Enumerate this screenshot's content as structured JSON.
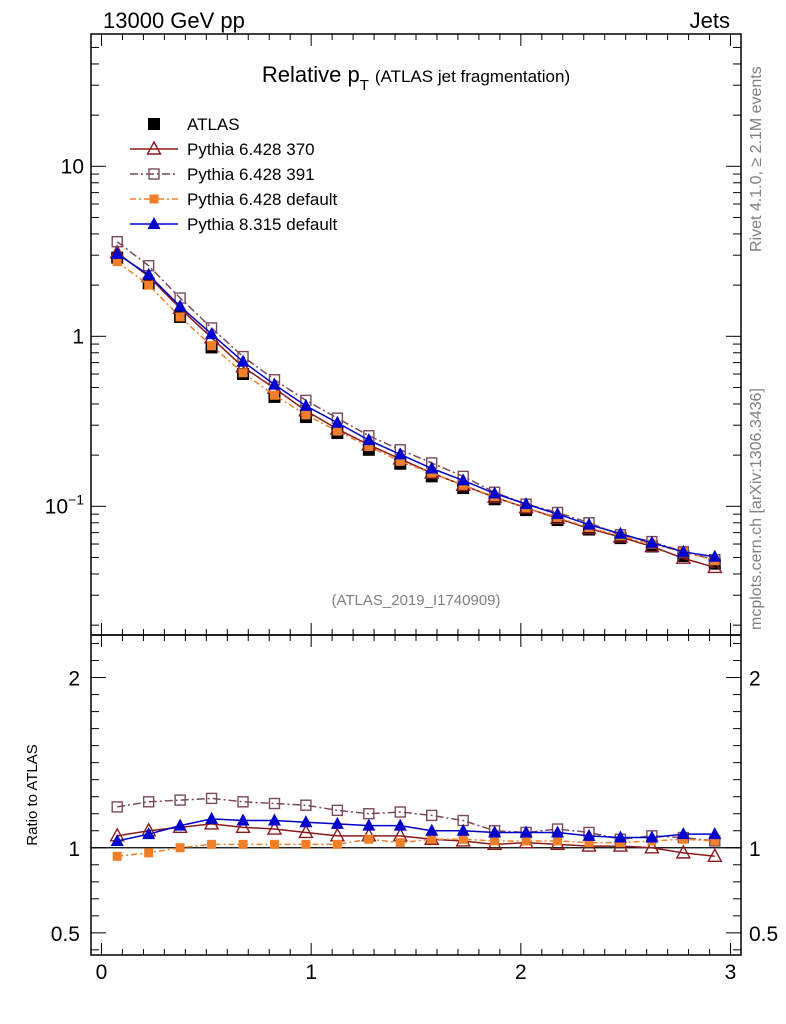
{
  "header": {
    "left": "13000 GeV pp",
    "right": "Jets"
  },
  "side": {
    "rivet": "Rivet 4.1.0, ≥ 2.1M events",
    "mcplots": "mcplots.cern.ch [arXiv:1306.3436]"
  },
  "chart_data": {
    "type": "line",
    "title": "Relative p",
    "title_sub": "T",
    "title_note": "(ATLAS jet fragmentation)",
    "analysis_tag": "(ATLAS_2019_I1740909)",
    "x": [
      0.075,
      0.225,
      0.375,
      0.525,
      0.675,
      0.825,
      0.975,
      1.125,
      1.275,
      1.425,
      1.575,
      1.725,
      1.875,
      2.025,
      2.175,
      2.325,
      2.475,
      2.625,
      2.775,
      2.925
    ],
    "xlim": [
      -0.05,
      3.05
    ],
    "ylim_main": [
      0.0175,
      60
    ],
    "ylim_ratio": [
      0.37,
      2.25
    ],
    "ylabel_ratio": "Ratio to ATLAS",
    "xticks": [
      {
        "value": 0,
        "label": "0"
      },
      {
        "value": 1,
        "label": "1"
      },
      {
        "value": 2,
        "label": "2"
      },
      {
        "value": 3,
        "label": "3"
      }
    ],
    "yticks_main": [
      {
        "value": 0.1,
        "label": "10",
        "sup": "−1"
      },
      {
        "value": 1,
        "label": "1",
        "sup": ""
      },
      {
        "value": 10,
        "label": "10",
        "sup": ""
      }
    ],
    "yticks_ratio": [
      {
        "value": 0.5,
        "label": "0.5"
      },
      {
        "value": 1,
        "label": "1"
      },
      {
        "value": 2,
        "label": "2"
      }
    ],
    "series": [
      {
        "name": "ATLAS",
        "color": "#000000",
        "marker": "filled-square",
        "dash": "",
        "values": [
          2.9,
          2.05,
          1.3,
          0.86,
          0.6,
          0.44,
          0.335,
          0.27,
          0.215,
          0.178,
          0.15,
          0.128,
          0.11,
          0.095,
          0.083,
          0.073,
          0.065,
          0.058,
          0.051,
          0.046
        ],
        "ratio": [
          1,
          1,
          1,
          1,
          1,
          1,
          1,
          1,
          1,
          1,
          1,
          1,
          1,
          1,
          1,
          1,
          1,
          1,
          1,
          1
        ]
      },
      {
        "name": "Pythia 6.428 370",
        "color": "#8b1a1a",
        "marker": "open-triangle",
        "dash": "",
        "values": [
          3.1,
          2.25,
          1.46,
          0.98,
          0.66,
          0.495,
          0.365,
          0.285,
          0.23,
          0.19,
          0.157,
          0.133,
          0.113,
          0.098,
          0.085,
          0.074,
          0.066,
          0.058,
          0.0495,
          0.0437
        ],
        "ratio": [
          1.07,
          1.1,
          1.12,
          1.14,
          1.12,
          1.11,
          1.09,
          1.07,
          1.07,
          1.07,
          1.05,
          1.04,
          1.02,
          1.03,
          1.02,
          1.01,
          1.01,
          1.0,
          0.97,
          0.95
        ]
      },
      {
        "name": "Pythia 6.428 391",
        "color": "#7a4a5e",
        "marker": "open-square",
        "dash": "8,3,2,3",
        "values": [
          3.6,
          2.6,
          1.68,
          1.12,
          0.76,
          0.555,
          0.42,
          0.33,
          0.26,
          0.215,
          0.18,
          0.15,
          0.121,
          0.103,
          0.092,
          0.08,
          0.068,
          0.062,
          0.054,
          0.0485
        ],
        "ratio": [
          1.24,
          1.27,
          1.28,
          1.29,
          1.27,
          1.26,
          1.25,
          1.22,
          1.2,
          1.21,
          1.19,
          1.16,
          1.1,
          1.09,
          1.11,
          1.09,
          1.05,
          1.07,
          1.06,
          1.04
        ]
      },
      {
        "name": "Pythia 6.428 default",
        "color": "#f07f2a",
        "marker": "filled-square-small",
        "dash": "6,3,2,3",
        "values": [
          2.75,
          2.0,
          1.3,
          0.88,
          0.61,
          0.45,
          0.345,
          0.277,
          0.225,
          0.184,
          0.157,
          0.133,
          0.114,
          0.098,
          0.086,
          0.075,
          0.067,
          0.06,
          0.054,
          0.048
        ],
        "ratio": [
          0.95,
          0.97,
          1.0,
          1.02,
          1.02,
          1.02,
          1.02,
          1.02,
          1.05,
          1.03,
          1.05,
          1.05,
          1.04,
          1.04,
          1.04,
          1.03,
          1.03,
          1.04,
          1.05,
          1.04
        ]
      },
      {
        "name": "Pythia 8.315 default",
        "color": "#0000cd",
        "marker": "filled-triangle",
        "dash": "",
        "values": [
          3.05,
          2.3,
          1.5,
          1.03,
          0.71,
          0.52,
          0.39,
          0.31,
          0.245,
          0.202,
          0.167,
          0.142,
          0.119,
          0.103,
          0.09,
          0.078,
          0.069,
          0.061,
          0.054,
          0.0505
        ],
        "ratio": [
          1.04,
          1.08,
          1.13,
          1.17,
          1.16,
          1.16,
          1.15,
          1.14,
          1.13,
          1.13,
          1.1,
          1.1,
          1.09,
          1.09,
          1.09,
          1.07,
          1.06,
          1.06,
          1.08,
          1.08
        ]
      }
    ]
  }
}
